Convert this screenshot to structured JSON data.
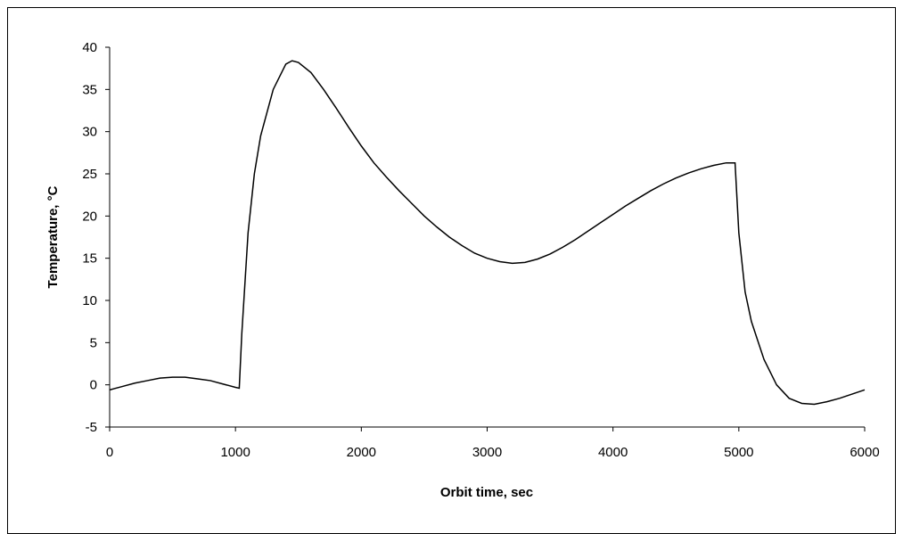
{
  "chart_data": {
    "type": "line",
    "x_label": "Orbit time, sec",
    "y_label": "Temperature, °C",
    "xlim": [
      0,
      6000
    ],
    "xticks": [
      0,
      1000,
      2000,
      3000,
      4000,
      5000,
      6000
    ],
    "ylim": [
      -5,
      40
    ],
    "yticks": [
      -5,
      0,
      5,
      10,
      15,
      20,
      25,
      30,
      35,
      40
    ],
    "series": [
      {
        "color": "#000000",
        "x": [
          0,
          100,
          200,
          300,
          400,
          500,
          600,
          700,
          800,
          900,
          1000,
          1030,
          1050,
          1100,
          1150,
          1200,
          1300,
          1400,
          1450,
          1500,
          1600,
          1700,
          1800,
          1900,
          2000,
          2100,
          2200,
          2300,
          2400,
          2500,
          2600,
          2700,
          2800,
          2900,
          3000,
          3100,
          3200,
          3300,
          3400,
          3500,
          3600,
          3700,
          3800,
          3900,
          4000,
          4100,
          4200,
          4300,
          4400,
          4500,
          4600,
          4700,
          4800,
          4900,
          4970,
          5000,
          5050,
          5100,
          5200,
          5300,
          5400,
          5500,
          5600,
          5700,
          5800,
          5900,
          6000
        ],
        "values": [
          -0.6,
          -0.2,
          0.2,
          0.5,
          0.8,
          0.9,
          0.9,
          0.7,
          0.5,
          0.1,
          -0.3,
          -0.4,
          6,
          18,
          25,
          29.5,
          35,
          38,
          38.4,
          38.2,
          37,
          35,
          32.8,
          30.5,
          28.3,
          26.3,
          24.6,
          23,
          21.5,
          20,
          18.7,
          17.5,
          16.5,
          15.6,
          15,
          14.6,
          14.4,
          14.5,
          14.9,
          15.5,
          16.3,
          17.2,
          18.2,
          19.2,
          20.2,
          21.2,
          22.1,
          23,
          23.8,
          24.5,
          25.1,
          25.6,
          26,
          26.3,
          26.3,
          18,
          11,
          7.5,
          3,
          0,
          -1.6,
          -2.2,
          -2.3,
          -2,
          -1.6,
          -1.1,
          -0.6
        ]
      }
    ]
  }
}
